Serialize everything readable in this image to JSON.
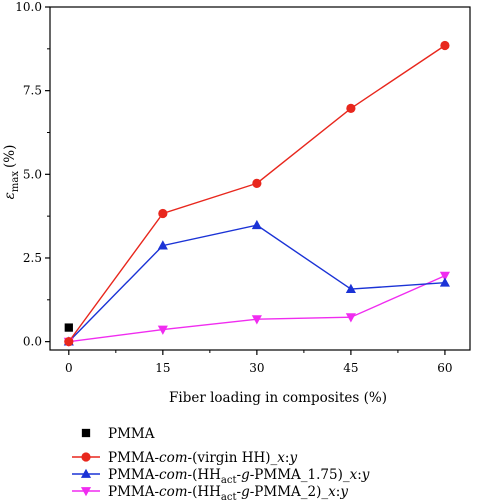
{
  "chart_data": {
    "type": "line",
    "xlabel": "Fiber loading in composites (%)",
    "ylabel_symbol": "ε",
    "ylabel_subscript": "max",
    "ylabel_unit": "(%)",
    "xlim": [
      -3,
      64
    ],
    "ylim": [
      -0.25,
      10.0
    ],
    "x_ticks": [
      0,
      15,
      30,
      45,
      60
    ],
    "x_tick_labels": [
      "0",
      "15",
      "30",
      "45",
      "60"
    ],
    "y_ticks": [
      0.0,
      2.5,
      5.0,
      7.5,
      10.0
    ],
    "y_tick_labels": [
      "0.0",
      "2.5",
      "5.0",
      "7.5",
      "10.0"
    ],
    "grid": false,
    "legend_position": "below-plot",
    "series": [
      {
        "name": "PMMA",
        "color": "#000000",
        "marker": "square",
        "line": false,
        "x": [
          0
        ],
        "y": [
          0.42
        ]
      },
      {
        "name": "PMMA-com-(virgin HH)_x:y",
        "legend_parts": [
          {
            "t": "PMMA-",
            "s": "n"
          },
          {
            "t": "com",
            "s": "i"
          },
          {
            "t": "-(virgin HH)_",
            "s": "n"
          },
          {
            "t": "x",
            "s": "i"
          },
          {
            "t": ":",
            "s": "n"
          },
          {
            "t": "y",
            "s": "i"
          }
        ],
        "color": "#e8271d",
        "marker": "circle",
        "line": true,
        "x": [
          0,
          15,
          30,
          45,
          60
        ],
        "y": [
          0.0,
          3.83,
          4.73,
          6.97,
          8.85
        ]
      },
      {
        "name": "PMMA-com-(HHact-g-PMMA_1.75)_x:y",
        "legend_parts": [
          {
            "t": "PMMA-",
            "s": "n"
          },
          {
            "t": "com",
            "s": "i"
          },
          {
            "t": "-(HH",
            "s": "n"
          },
          {
            "t": "act",
            "s": "sub"
          },
          {
            "t": "-",
            "s": "n"
          },
          {
            "t": "g",
            "s": "i"
          },
          {
            "t": "-PMMA_1.75)_",
            "s": "n"
          },
          {
            "t": "x",
            "s": "i"
          },
          {
            "t": ":",
            "s": "n"
          },
          {
            "t": "y",
            "s": "i"
          }
        ],
        "color": "#1b33d6",
        "marker": "triangle-up",
        "line": true,
        "x": [
          0,
          15,
          30,
          45,
          60
        ],
        "y": [
          0.0,
          2.87,
          3.48,
          1.57,
          1.76
        ]
      },
      {
        "name": "PMMA-com-(HHact-g-PMMA_2)_x:y",
        "legend_parts": [
          {
            "t": "PMMA-",
            "s": "n"
          },
          {
            "t": "com",
            "s": "i"
          },
          {
            "t": "-(HH",
            "s": "n"
          },
          {
            "t": "act",
            "s": "sub"
          },
          {
            "t": "-",
            "s": "n"
          },
          {
            "t": "g",
            "s": "i"
          },
          {
            "t": "-PMMA_2)_",
            "s": "n"
          },
          {
            "t": "x",
            "s": "i"
          },
          {
            "t": ":",
            "s": "n"
          },
          {
            "t": "y",
            "s": "i"
          }
        ],
        "color": "#f02cf0",
        "marker": "triangle-down",
        "line": true,
        "x": [
          0,
          15,
          30,
          45,
          60
        ],
        "y": [
          0.0,
          0.36,
          0.67,
          0.73,
          1.97
        ]
      }
    ]
  }
}
